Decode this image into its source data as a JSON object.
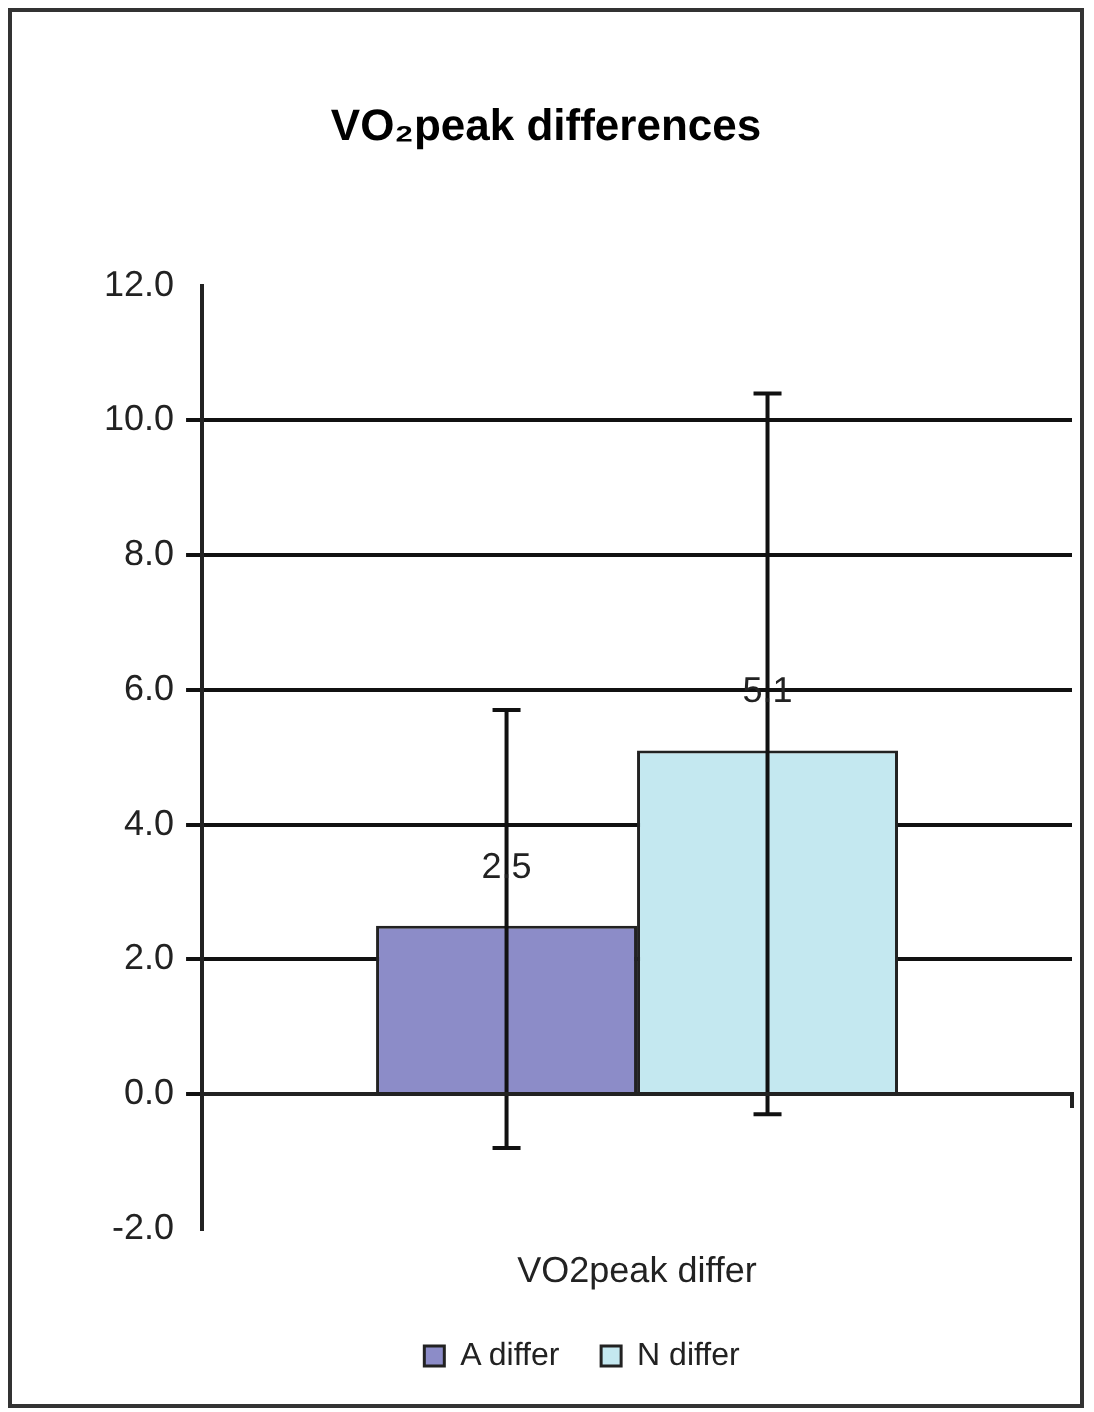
{
  "chart_data": {
    "type": "bar",
    "title": "VO₂peak differences",
    "categories": [
      "VO2peak differ"
    ],
    "series": [
      {
        "name": "A differ",
        "color": "#8c8cc8",
        "values": [
          2.5
        ],
        "errors": [
          [
            -0.8,
            5.7
          ]
        ]
      },
      {
        "name": "N differ",
        "color": "#c4e8f0",
        "values": [
          5.1
        ],
        "errors": [
          [
            -0.3,
            10.4
          ]
        ]
      }
    ],
    "ylim": [
      -2,
      12
    ],
    "yticks": [
      {
        "value": -2,
        "label": "-2.0"
      },
      {
        "value": 0,
        "label": "0.0"
      },
      {
        "value": 2,
        "label": "2.0"
      },
      {
        "value": 4,
        "label": "4.0"
      },
      {
        "value": 6,
        "label": "6.0"
      },
      {
        "value": 8,
        "label": "8.0"
      },
      {
        "value": 10,
        "label": "10.0"
      },
      {
        "value": 12,
        "label": "12.0"
      }
    ],
    "ref_lines": [
      {
        "axis": "y",
        "value": 0
      }
    ],
    "grid": "y",
    "legend": "bottom",
    "data_labels": true
  }
}
